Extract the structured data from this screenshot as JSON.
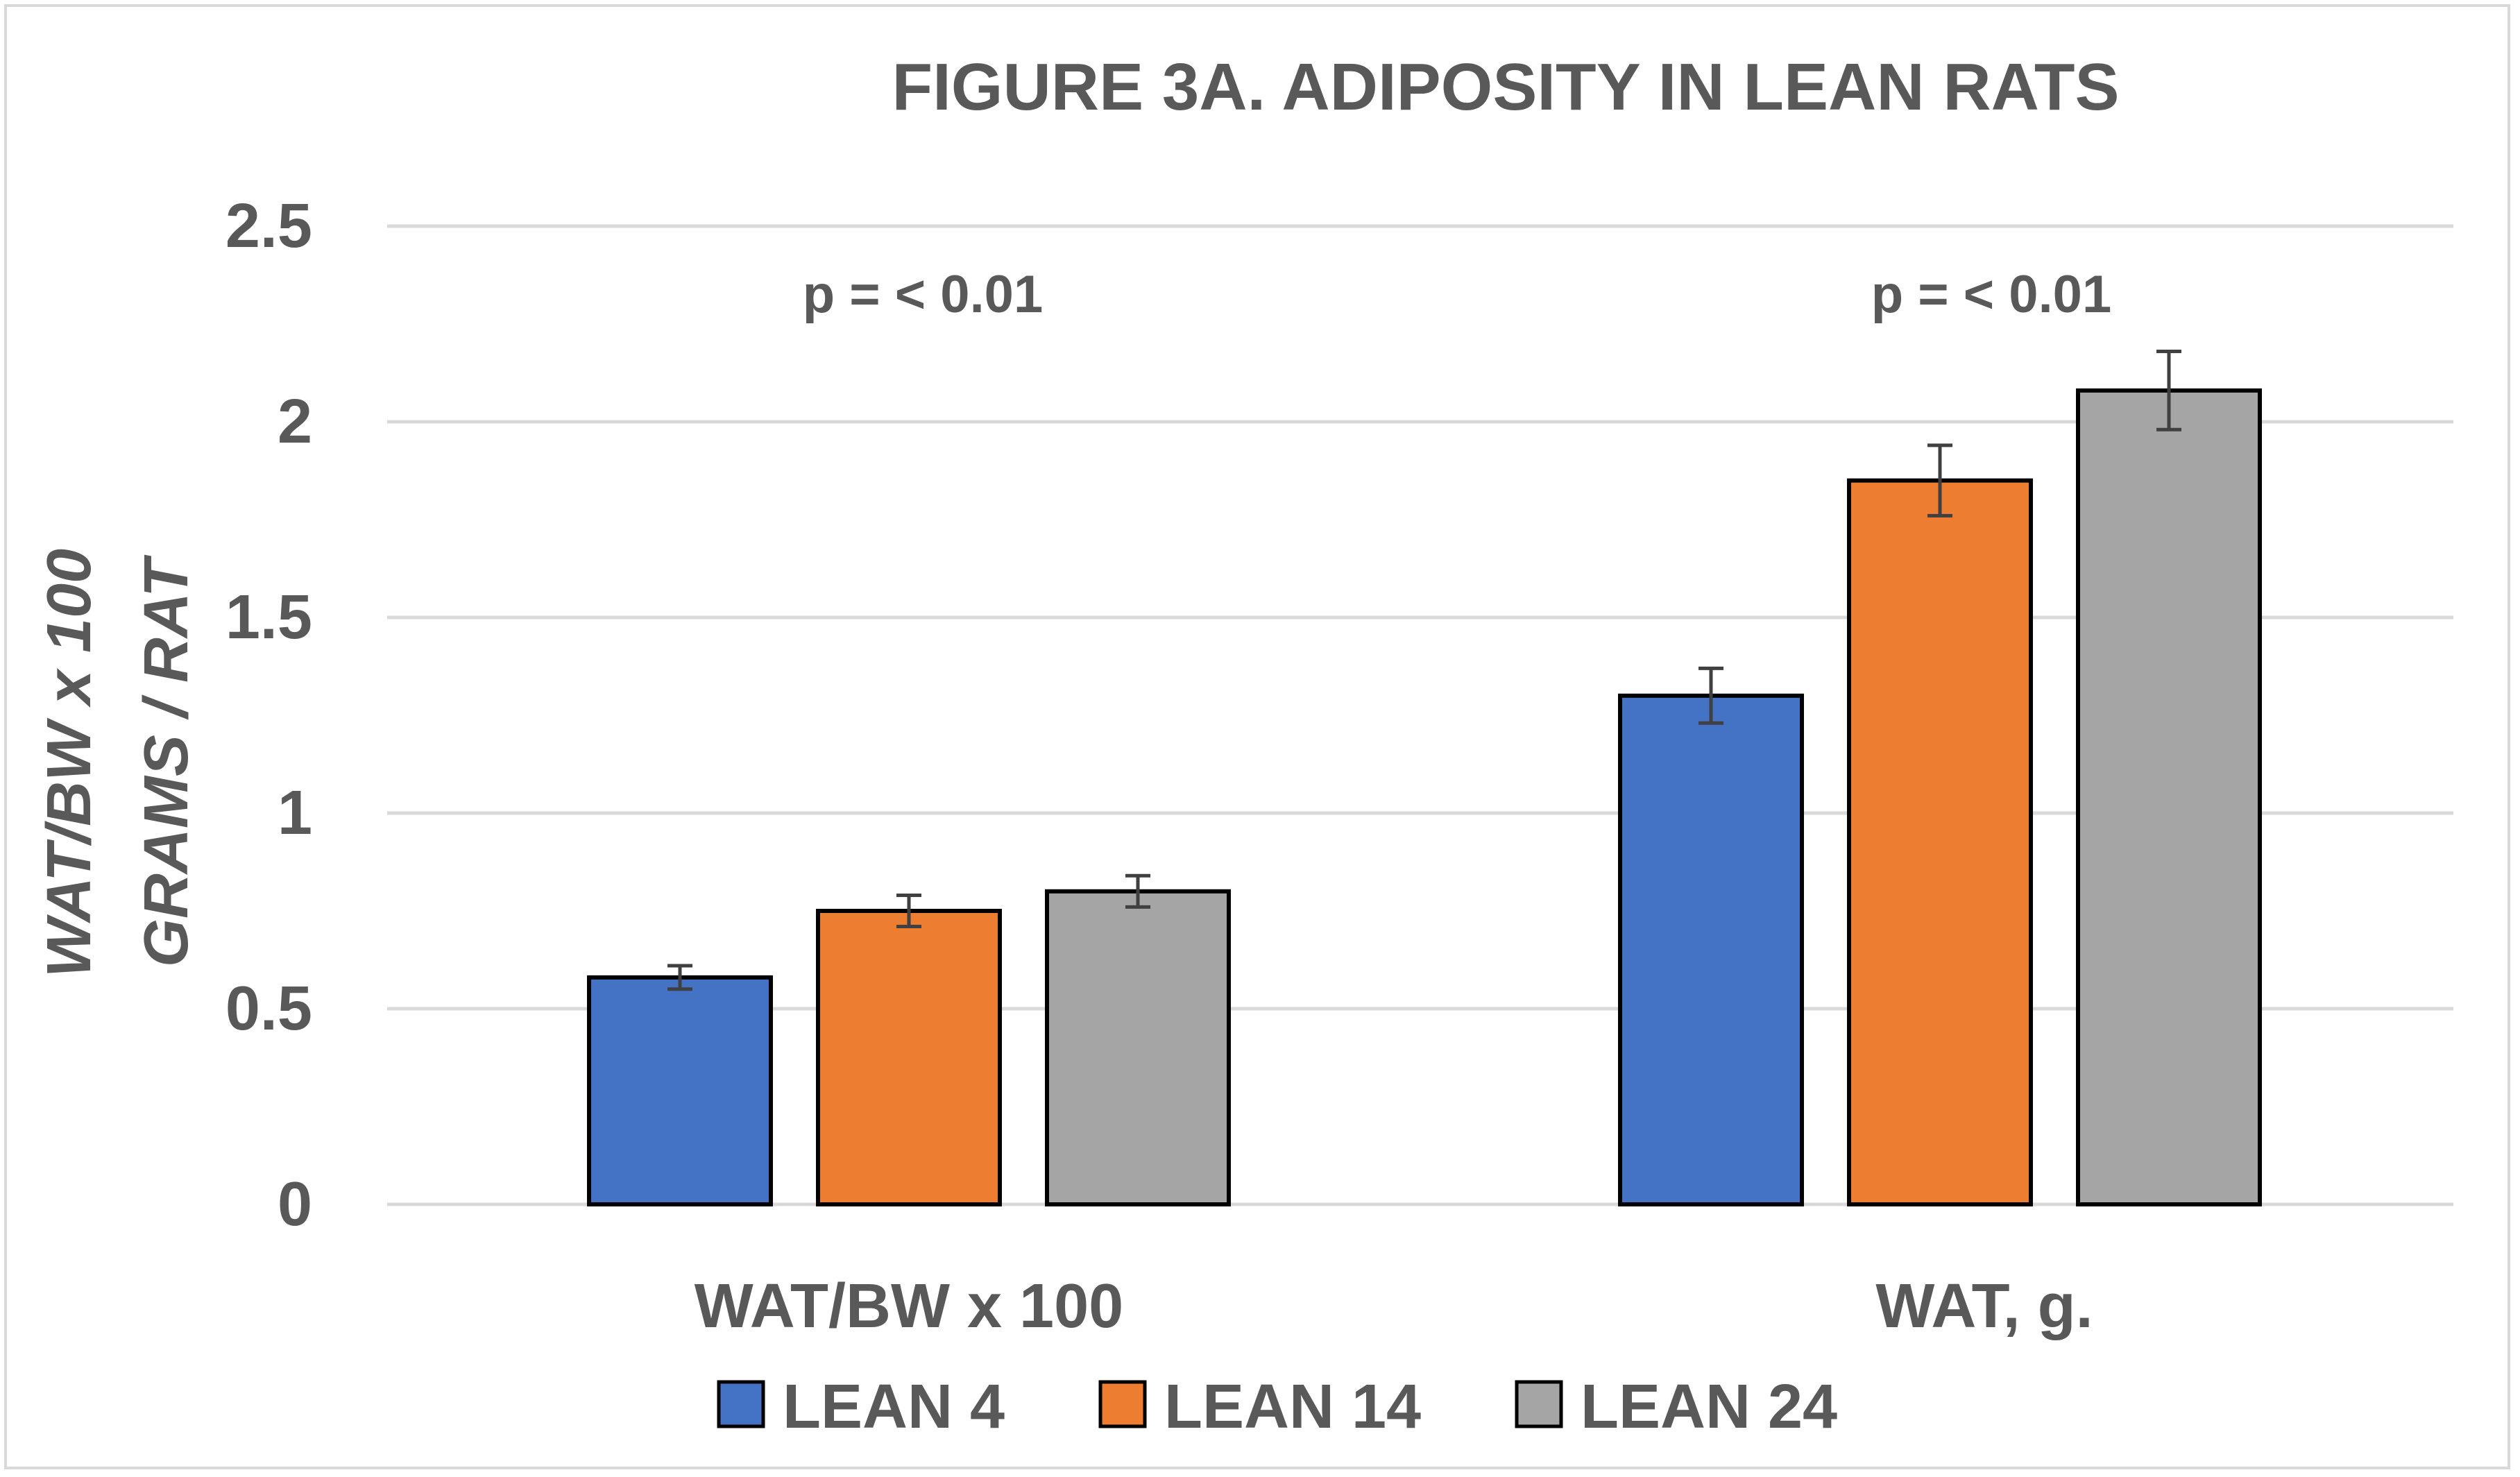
{
  "chart_data": {
    "type": "bar",
    "title": "FIGURE 3A. ADIPOSITY IN LEAN RATS",
    "ylabel_lines": [
      "WAT/BW x 100",
      "GRAMS / RAT"
    ],
    "xlabel": "",
    "categories": [
      "WAT/BW x 100",
      "WAT, g."
    ],
    "ylim": [
      0,
      2.5
    ],
    "yticks": [
      0,
      0.5,
      1,
      1.5,
      2,
      2.5
    ],
    "ytick_labels": [
      "0",
      "0.5",
      "1",
      "1.5",
      "2",
      "2.5"
    ],
    "grid": true,
    "legend_position": "bottom",
    "series": [
      {
        "name": "LEAN 4",
        "color": "#4472C4",
        "values": [
          0.58,
          1.3
        ],
        "errors": [
          0.03,
          0.07
        ]
      },
      {
        "name": "LEAN 14",
        "color": "#ED7D31",
        "values": [
          0.75,
          1.85
        ],
        "errors": [
          0.04,
          0.09
        ]
      },
      {
        "name": "LEAN 24",
        "color": "#A5A5A5",
        "values": [
          0.8,
          2.08
        ],
        "errors": [
          0.04,
          0.1
        ]
      }
    ],
    "annotations": [
      "p = < 0.01",
      "p = < 0.01"
    ]
  },
  "colors": {
    "text": "#595959",
    "grid": "#d9d9d9",
    "bar_outline": "#000000",
    "error_bar": "#404040"
  }
}
